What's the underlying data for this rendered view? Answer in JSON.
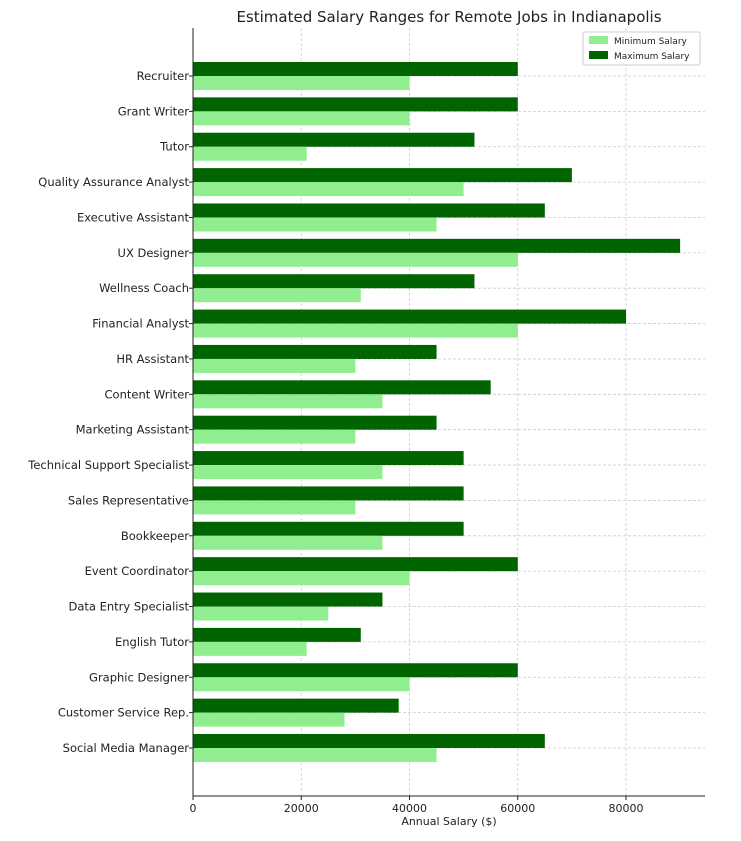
{
  "chart_data": {
    "type": "bar",
    "orientation": "horizontal",
    "title": "Estimated Salary Ranges for Remote Jobs in Indianapolis",
    "xlabel": "Annual Salary ($)",
    "ylabel": "",
    "xlim": [
      0,
      95000
    ],
    "xticks": [
      0,
      20000,
      40000,
      60000,
      80000
    ],
    "grid": true,
    "legend_position": "top-right",
    "categories": [
      "Recruiter",
      "Grant Writer",
      "Tutor",
      "Quality Assurance Analyst",
      "Executive Assistant",
      "UX Designer",
      "Wellness Coach",
      "Financial Analyst",
      "HR Assistant",
      "Content Writer",
      "Marketing Assistant",
      "Technical Support Specialist",
      "Sales Representative",
      "Bookkeeper",
      "Event Coordinator",
      "Data Entry Specialist",
      "English Tutor",
      "Graphic Designer",
      "Customer Service Rep.",
      "Social Media Manager"
    ],
    "series": [
      {
        "name": "Minimum Salary",
        "color": "#90ee90",
        "values": [
          40000,
          40000,
          21000,
          50000,
          45000,
          60000,
          31000,
          60000,
          30000,
          35000,
          30000,
          35000,
          30000,
          35000,
          40000,
          25000,
          21000,
          40000,
          28000,
          45000
        ]
      },
      {
        "name": "Maximum Salary",
        "color": "#006400",
        "values": [
          60000,
          60000,
          52000,
          70000,
          65000,
          90000,
          52000,
          80000,
          45000,
          55000,
          45000,
          50000,
          50000,
          50000,
          60000,
          35000,
          31000,
          60000,
          38000,
          65000
        ]
      }
    ]
  }
}
